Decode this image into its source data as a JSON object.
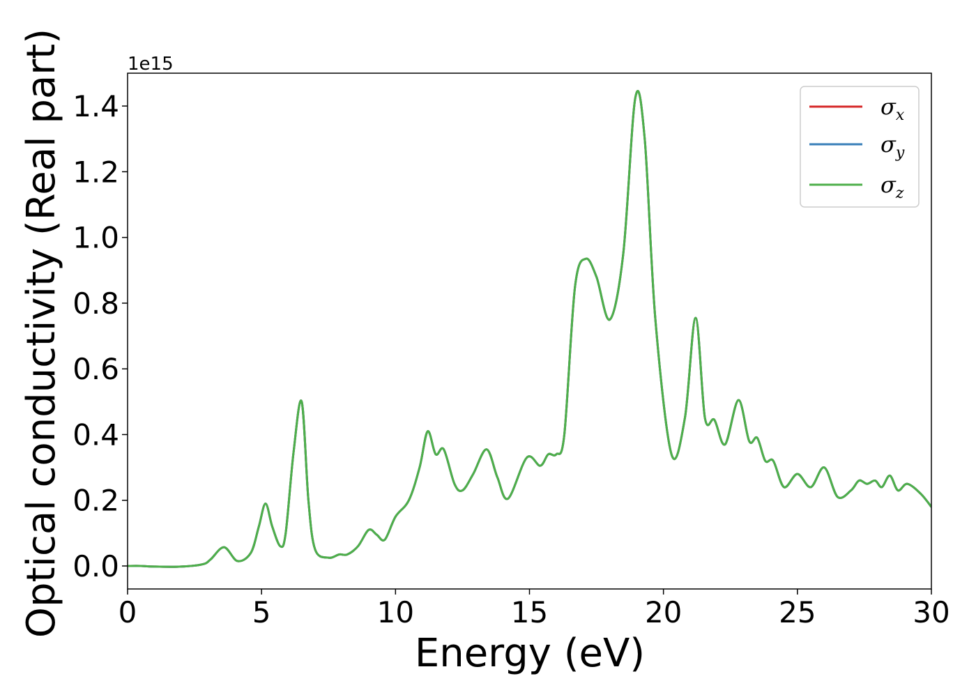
{
  "chart_data": {
    "type": "line",
    "title": "",
    "xlabel": "Energy (eV)",
    "ylabel": "Optical conductivity (Real part)",
    "y_offset_label": "1e15",
    "xlim": [
      0,
      30
    ],
    "ylim": [
      -0.07,
      1.5
    ],
    "y_scale_factor": 1000000000000000.0,
    "x_ticks": [
      0,
      5,
      10,
      15,
      20,
      25,
      30
    ],
    "y_ticks": [
      0.0,
      0.2,
      0.4,
      0.6,
      0.8,
      1.0,
      1.2,
      1.4
    ],
    "x_tick_labels": [
      "0",
      "5",
      "10",
      "15",
      "20",
      "25",
      "30"
    ],
    "y_tick_labels": [
      "0.0",
      "0.2",
      "0.4",
      "0.6",
      "0.8",
      "1.0",
      "1.2",
      "1.4"
    ],
    "grid": false,
    "legend_position": "top-right",
    "series": [
      {
        "name": "σx",
        "symbol": "σ",
        "sub": "x",
        "color": "#d62728"
      },
      {
        "name": "σy",
        "symbol": "σ",
        "sub": "y",
        "color": "#377eb8"
      },
      {
        "name": "σz",
        "symbol": "σ",
        "sub": "z",
        "color": "#4daf4a"
      }
    ],
    "x": [
      0,
      0.5,
      1.0,
      2.0,
      2.8,
      3.1,
      3.6,
      4.1,
      4.6,
      4.9,
      5.15,
      5.4,
      5.7,
      5.9,
      6.2,
      6.5,
      6.75,
      7.0,
      7.5,
      7.9,
      8.2,
      8.6,
      9.0,
      9.3,
      9.6,
      10.0,
      10.5,
      10.9,
      11.2,
      11.5,
      11.8,
      12.2,
      12.5,
      12.9,
      13.4,
      13.8,
      14.2,
      14.9,
      15.4,
      15.7,
      16.0,
      16.3,
      16.7,
      17.1,
      17.5,
      18.0,
      18.5,
      18.95,
      19.3,
      19.7,
      20.3,
      20.8,
      21.2,
      21.55,
      21.9,
      22.3,
      22.8,
      23.2,
      23.5,
      23.8,
      24.1,
      24.5,
      25.0,
      25.5,
      26.0,
      26.5,
      27.0,
      27.3,
      27.6,
      27.9,
      28.15,
      28.45,
      28.75,
      29.1,
      29.6,
      30.0
    ],
    "values": [
      0.0,
      0.0,
      -0.002,
      -0.002,
      0.005,
      0.02,
      0.057,
      0.015,
      0.04,
      0.12,
      0.19,
      0.12,
      0.06,
      0.1,
      0.35,
      0.5,
      0.2,
      0.05,
      0.025,
      0.035,
      0.035,
      0.06,
      0.11,
      0.095,
      0.08,
      0.15,
      0.2,
      0.3,
      0.41,
      0.34,
      0.355,
      0.25,
      0.23,
      0.28,
      0.355,
      0.27,
      0.205,
      0.33,
      0.305,
      0.34,
      0.34,
      0.4,
      0.85,
      0.935,
      0.88,
      0.75,
      0.95,
      1.425,
      1.3,
      0.75,
      0.34,
      0.45,
      0.755,
      0.45,
      0.445,
      0.37,
      0.505,
      0.38,
      0.39,
      0.32,
      0.32,
      0.24,
      0.28,
      0.24,
      0.3,
      0.21,
      0.23,
      0.26,
      0.25,
      0.26,
      0.24,
      0.275,
      0.23,
      0.25,
      0.22,
      0.18
    ]
  }
}
